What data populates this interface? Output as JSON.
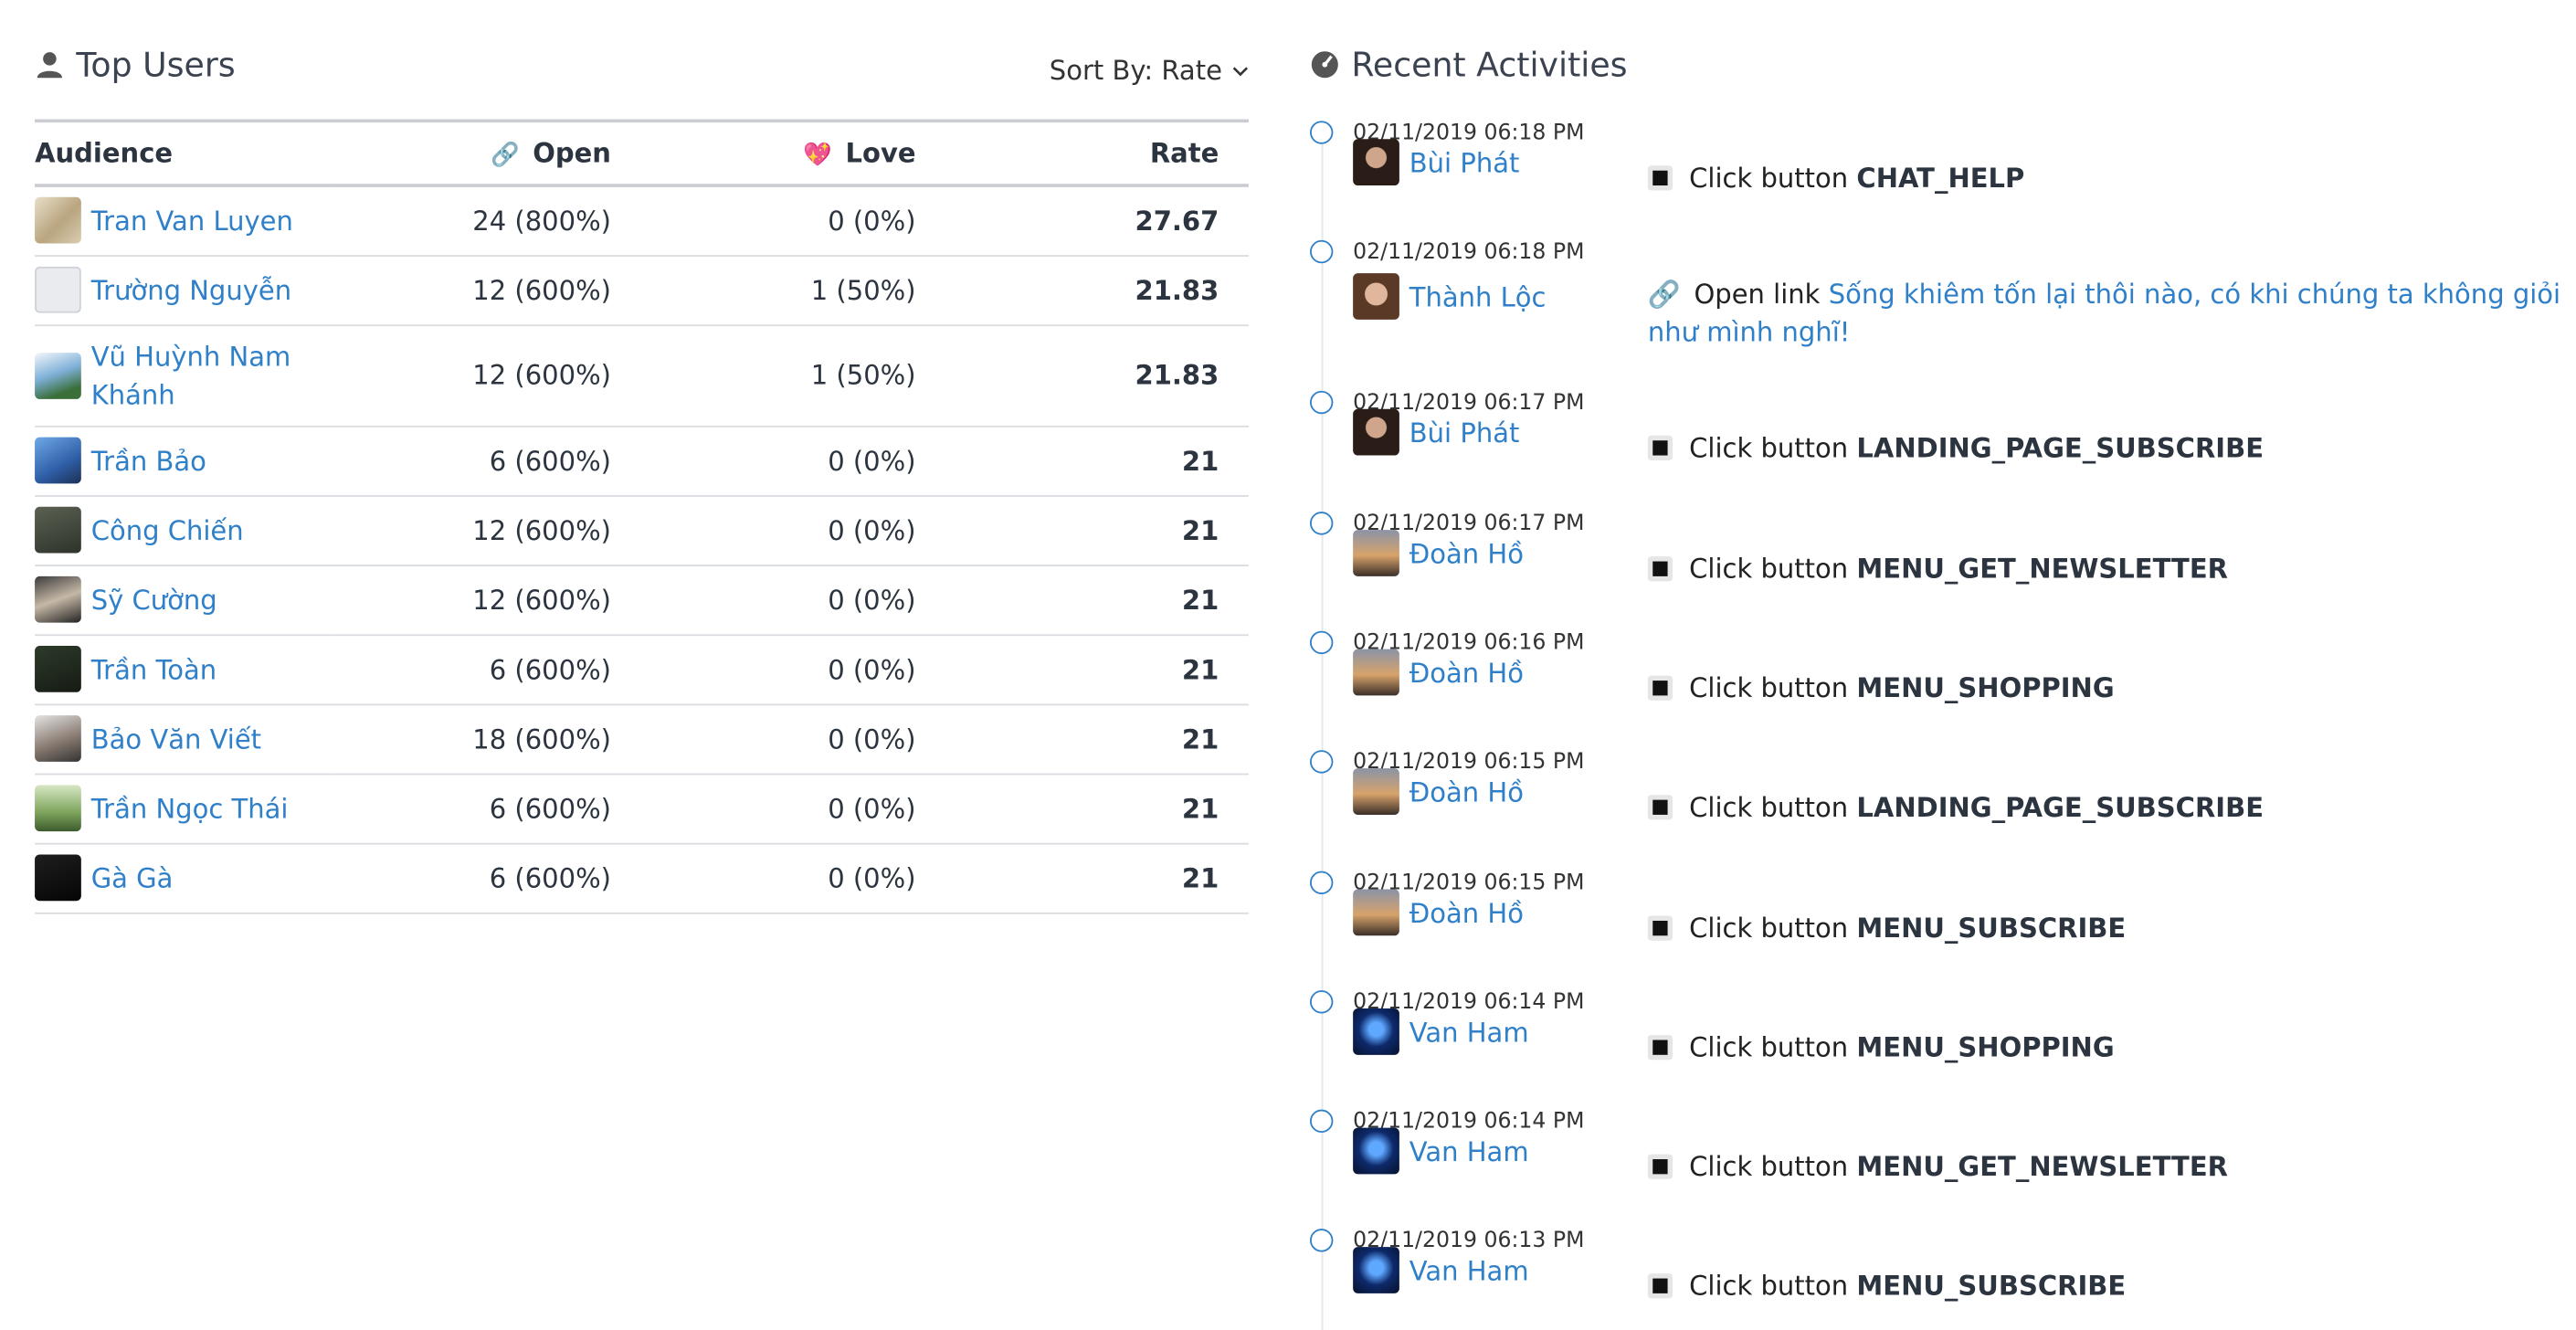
{
  "top_users": {
    "title": "Top Users",
    "sort_label": "Sort By: Rate",
    "columns": {
      "audience": "Audience",
      "open": "Open",
      "love": "Love",
      "rate": "Rate"
    },
    "rows": [
      {
        "name": "Tran Van Luyen",
        "open": "24 (800%)",
        "love": "0 (0%)",
        "rate": "27.67"
      },
      {
        "name": "Trường Nguyễn",
        "open": "12 (600%)",
        "love": "1 (50%)",
        "rate": "21.83"
      },
      {
        "name": "Vũ Huỳnh Nam Khánh",
        "open": "12 (600%)",
        "love": "1 (50%)",
        "rate": "21.83"
      },
      {
        "name": "Trần Bảo",
        "open": "6 (600%)",
        "love": "0 (0%)",
        "rate": "21"
      },
      {
        "name": "Công Chiến",
        "open": "12 (600%)",
        "love": "0 (0%)",
        "rate": "21"
      },
      {
        "name": "Sỹ Cường",
        "open": "12 (600%)",
        "love": "0 (0%)",
        "rate": "21"
      },
      {
        "name": "Trần Toàn",
        "open": "6 (600%)",
        "love": "0 (0%)",
        "rate": "21"
      },
      {
        "name": "Bảo Văn Viết",
        "open": "18 (600%)",
        "love": "0 (0%)",
        "rate": "21"
      },
      {
        "name": "Trần Ngọc Thái",
        "open": "6 (600%)",
        "love": "0 (0%)",
        "rate": "21"
      },
      {
        "name": "Gà Gà",
        "open": "6 (600%)",
        "love": "0 (0%)",
        "rate": "21"
      }
    ]
  },
  "recent": {
    "title": "Recent Activities",
    "items": [
      {
        "time": "02/11/2019 06:18 PM",
        "user": "Bùi Phát",
        "prefix": "Click button",
        "target": "CHAT_HELP"
      },
      {
        "time": "02/11/2019 06:18 PM",
        "user": "Thành Lộc",
        "prefix": "Open link",
        "target": "Sống khiêm tốn lại thôi nào, có khi chúng ta không giỏi như mình nghĩ!"
      },
      {
        "time": "02/11/2019 06:17 PM",
        "user": "Bùi Phát",
        "prefix": "Click button",
        "target": "LANDING_PAGE_SUBSCRIBE"
      },
      {
        "time": "02/11/2019 06:17 PM",
        "user": "Đoàn Hồ",
        "prefix": "Click button",
        "target": "MENU_GET_NEWSLETTER"
      },
      {
        "time": "02/11/2019 06:16 PM",
        "user": "Đoàn Hồ",
        "prefix": "Click button",
        "target": "MENU_SHOPPING"
      },
      {
        "time": "02/11/2019 06:15 PM",
        "user": "Đoàn Hồ",
        "prefix": "Click button",
        "target": "LANDING_PAGE_SUBSCRIBE"
      },
      {
        "time": "02/11/2019 06:15 PM",
        "user": "Đoàn Hồ",
        "prefix": "Click button",
        "target": "MENU_SUBSCRIBE"
      },
      {
        "time": "02/11/2019 06:14 PM",
        "user": "Van Ham",
        "prefix": "Click button",
        "target": "MENU_SHOPPING"
      },
      {
        "time": "02/11/2019 06:14 PM",
        "user": "Van Ham",
        "prefix": "Click button",
        "target": "MENU_GET_NEWSLETTER"
      },
      {
        "time": "02/11/2019 06:13 PM",
        "user": "Van Ham",
        "prefix": "Click button",
        "target": "MENU_SUBSCRIBE"
      }
    ]
  },
  "colors": {
    "link": "#2f80c8",
    "text": "#2c3440"
  }
}
